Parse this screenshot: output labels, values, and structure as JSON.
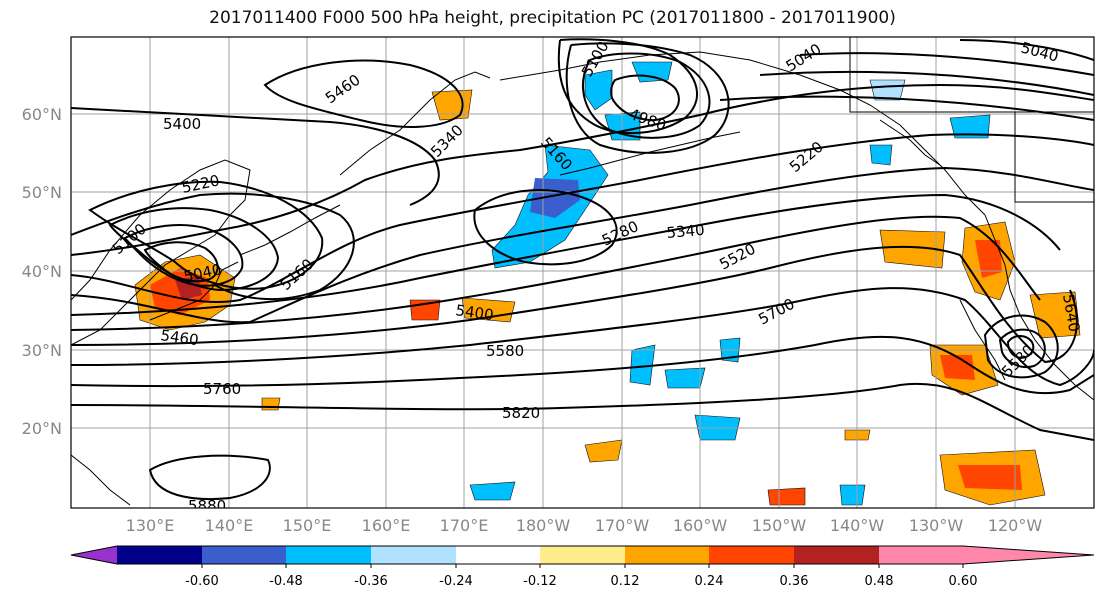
{
  "title": "2017011400 F000 500 hPa height, precipitation PC (2017011800 - 2017011900)",
  "latitude_labels": [
    "60°N",
    "50°N",
    "40°N",
    "30°N",
    "20°N"
  ],
  "longitude_labels": [
    "130°E",
    "140°E",
    "150°E",
    "160°E",
    "170°E",
    "180°W",
    "170°W",
    "160°W",
    "150°W",
    "140°W",
    "130°W",
    "120°W"
  ],
  "contour_labels": [
    "5400",
    "5460",
    "5100",
    "5040",
    "4980",
    "5160",
    "5220",
    "5100",
    "5040",
    "5340",
    "5220",
    "5280",
    "5340",
    "5520",
    "5160",
    "5460",
    "5400",
    "5580",
    "5700",
    "5760",
    "5820",
    "5880",
    "5640",
    "5580",
    "5040"
  ],
  "colorbar": {
    "ticks": [
      "-0.60",
      "-0.48",
      "-0.36",
      "-0.24",
      "-0.12",
      "0.12",
      "0.24",
      "0.36",
      "0.48",
      "0.60"
    ],
    "colors": [
      "#9932cc",
      "#00008b",
      "#3a5fcd",
      "#00bfff",
      "#b0e2ff",
      "#ffffff",
      "#ffec8b",
      "#ffa500",
      "#ff4500",
      "#b22222",
      "#ff88aa"
    ]
  },
  "colors": {
    "grid": "#a0a0a0",
    "contour": "#000000",
    "coastline": "#000000"
  }
}
